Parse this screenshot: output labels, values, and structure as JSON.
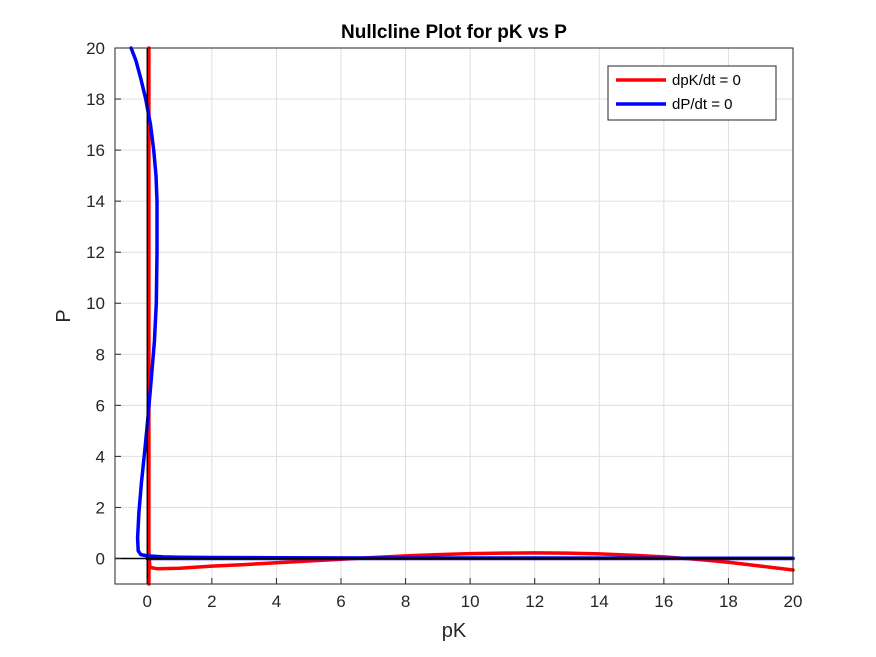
{
  "chart_data": {
    "type": "line",
    "title": "Nullcline Plot for pK vs P",
    "xlabel": "pK",
    "ylabel": "P",
    "xlim": [
      -1,
      20
    ],
    "ylim": [
      -1,
      20
    ],
    "xticks": [
      0,
      2,
      4,
      6,
      8,
      10,
      12,
      14,
      16,
      18,
      20
    ],
    "yticks": [
      0,
      2,
      4,
      6,
      8,
      10,
      12,
      14,
      16,
      18,
      20
    ],
    "grid": true,
    "legend_position": "top-right",
    "series": [
      {
        "name": "dpK/dt = 0",
        "color": "#ff0000",
        "segments": [
          {
            "x": [
              0.05,
              0.05
            ],
            "y": [
              -1,
              20
            ]
          },
          {
            "x": [
              0.05,
              0.08,
              0.3,
              1,
              2,
              3,
              4,
              5,
              6,
              7,
              8,
              9,
              10,
              11,
              12,
              13,
              14,
              15,
              16,
              17,
              18,
              19,
              20
            ],
            "y": [
              0.2,
              -0.35,
              -0.4,
              -0.38,
              -0.3,
              -0.24,
              -0.17,
              -0.1,
              -0.03,
              0.04,
              0.1,
              0.15,
              0.19,
              0.21,
              0.22,
              0.21,
              0.18,
              0.13,
              0.06,
              -0.03,
              -0.15,
              -0.3,
              -0.45
            ]
          }
        ]
      },
      {
        "name": "dP/dt = 0",
        "color": "#0000ff",
        "segments": [
          {
            "x": [
              -0.5,
              -0.35,
              -0.2,
              -0.05,
              0.1,
              0.2,
              0.27,
              0.3,
              0.3,
              0.28,
              0.22,
              0.12,
              0.02,
              -0.08,
              -0.18,
              -0.26,
              -0.3,
              -0.28,
              -0.2,
              0,
              0.5,
              1,
              2,
              4,
              8,
              12,
              16,
              20
            ],
            "y": [
              20,
              19.5,
              18.8,
              18,
              17,
              16,
              15,
              14,
              12,
              10,
              8.5,
              7,
              5.5,
              4.2,
              3,
              1.8,
              0.8,
              0.3,
              0.15,
              0.1,
              0.06,
              0.05,
              0.04,
              0.03,
              0.02,
              0.02,
              0.01,
              0.01
            ]
          },
          {
            "x": [
              0,
              20
            ],
            "y": [
              0,
              0
            ]
          }
        ]
      }
    ],
    "reference_lines": [
      {
        "orientation": "vertical",
        "value": 0,
        "color": "#000000"
      },
      {
        "orientation": "horizontal",
        "value": 0,
        "color": "#000000"
      }
    ]
  }
}
